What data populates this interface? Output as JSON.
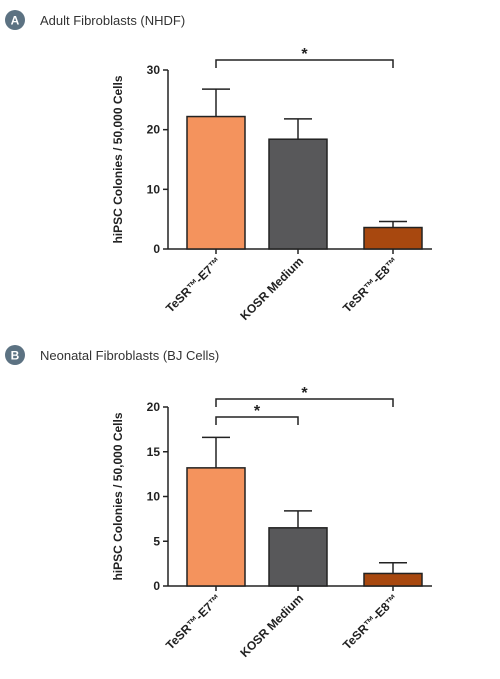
{
  "chart_data": [
    {
      "type": "bar",
      "panel_label": "A",
      "title": "Adult Fibroblasts (NHDF)",
      "ylabel": "hiPSC Colonies / 50,000 Cells",
      "xlabel": "",
      "ylim": [
        0,
        30
      ],
      "yticks": [
        0,
        10,
        20,
        30
      ],
      "grid": false,
      "categories": [
        "TeSR™-E7™",
        "KOSR Medium",
        "TeSR™-E8™"
      ],
      "values": [
        22.2,
        18.4,
        3.6
      ],
      "errors": [
        4.6,
        3.4,
        1.0
      ],
      "colors": [
        "#f4935d",
        "#58585a",
        "#a8480f"
      ],
      "significance": [
        {
          "from": 0,
          "to": 2,
          "label": "*"
        }
      ]
    },
    {
      "type": "bar",
      "panel_label": "B",
      "title": "Neonatal Fibroblasts (BJ Cells)",
      "ylabel": "hiPSC Colonies / 50,000 Cells",
      "xlabel": "",
      "ylim": [
        0,
        20
      ],
      "yticks": [
        0,
        5,
        10,
        15,
        20
      ],
      "grid": false,
      "categories": [
        "TeSR™-E7™",
        "KOSR Medium",
        "TeSR™-E8™"
      ],
      "values": [
        13.2,
        6.5,
        1.4
      ],
      "errors": [
        3.4,
        1.9,
        1.2
      ],
      "colors": [
        "#f4935d",
        "#58585a",
        "#a8480f"
      ],
      "significance": [
        {
          "from": 0,
          "to": 1,
          "label": "*"
        },
        {
          "from": 0,
          "to": 2,
          "label": "*"
        }
      ]
    }
  ],
  "badge_color": "#5c7282"
}
